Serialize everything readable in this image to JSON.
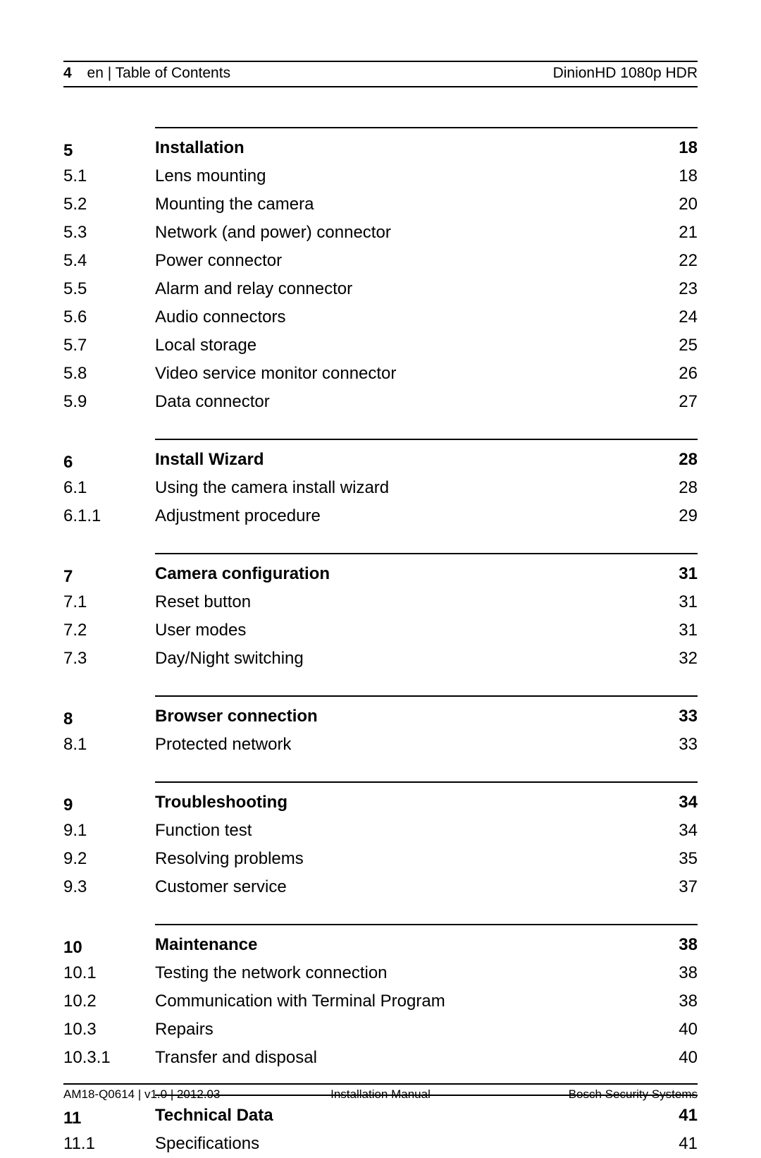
{
  "header": {
    "page_number": "4",
    "breadcrumb": "en | Table of Contents",
    "product": "DinionHD 1080p HDR"
  },
  "sections": [
    {
      "number": "5",
      "title": "Installation",
      "page": "18",
      "entries": [
        {
          "number": "5.1",
          "title": "Lens mounting",
          "page": "18"
        },
        {
          "number": "5.2",
          "title": "Mounting the camera",
          "page": "20"
        },
        {
          "number": "5.3",
          "title": "Network (and power) connector",
          "page": "21"
        },
        {
          "number": "5.4",
          "title": "Power connector",
          "page": "22"
        },
        {
          "number": "5.5",
          "title": "Alarm and relay connector",
          "page": "23"
        },
        {
          "number": "5.6",
          "title": "Audio connectors",
          "page": "24"
        },
        {
          "number": "5.7",
          "title": "Local storage",
          "page": "25"
        },
        {
          "number": "5.8",
          "title": "Video service monitor connector",
          "page": "26"
        },
        {
          "number": "5.9",
          "title": "Data connector",
          "page": "27"
        }
      ]
    },
    {
      "number": "6",
      "title": "Install Wizard",
      "page": "28",
      "entries": [
        {
          "number": "6.1",
          "title": "Using the camera install wizard",
          "page": "28"
        },
        {
          "number": "6.1.1",
          "title": "Adjustment procedure",
          "page": "29"
        }
      ]
    },
    {
      "number": "7",
      "title": "Camera configuration",
      "page": "31",
      "entries": [
        {
          "number": "7.1",
          "title": "Reset button",
          "page": "31"
        },
        {
          "number": "7.2",
          "title": "User modes",
          "page": "31"
        },
        {
          "number": "7.3",
          "title": "Day/Night switching",
          "page": "32"
        }
      ]
    },
    {
      "number": "8",
      "title": "Browser connection",
      "page": "33",
      "entries": [
        {
          "number": "8.1",
          "title": "Protected network",
          "page": "33"
        }
      ]
    },
    {
      "number": "9",
      "title": "Troubleshooting",
      "page": "34",
      "entries": [
        {
          "number": "9.1",
          "title": "Function test",
          "page": "34"
        },
        {
          "number": "9.2",
          "title": "Resolving problems",
          "page": "35"
        },
        {
          "number": "9.3",
          "title": "Customer service",
          "page": "37"
        }
      ]
    },
    {
      "number": "10",
      "title": "Maintenance",
      "page": "38",
      "entries": [
        {
          "number": "10.1",
          "title": "Testing the network connection",
          "page": "38"
        },
        {
          "number": "10.2",
          "title": "Communication with Terminal Program",
          "page": "38"
        },
        {
          "number": "10.3",
          "title": "Repairs",
          "page": "40"
        },
        {
          "number": "10.3.1",
          "title": "Transfer and disposal",
          "page": "40"
        }
      ]
    },
    {
      "number": "11",
      "title": "Technical Data",
      "page": "41",
      "entries": [
        {
          "number": "11.1",
          "title": "Specifications",
          "page": "41"
        }
      ]
    }
  ],
  "footer": {
    "left": "AM18-Q0614 | v1.0 | 2012.03",
    "center": "Installation Manual",
    "right": "Bosch Security Systems"
  }
}
